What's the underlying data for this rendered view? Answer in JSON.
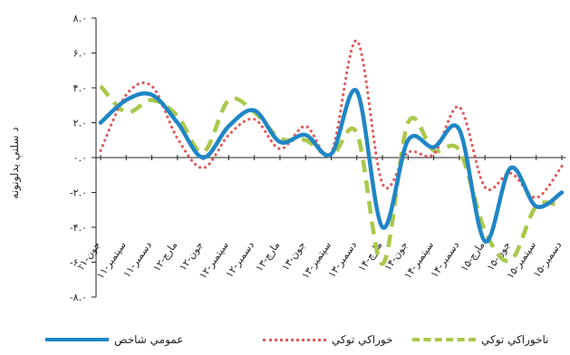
{
  "chart_data": {
    "type": "line",
    "ylabel": "د سلنې بدلونونه",
    "ylim": [
      -8,
      8
    ],
    "yticks": [
      8,
      6,
      4,
      2,
      0,
      -2,
      -4,
      -6,
      -8
    ],
    "ytick_labels": [
      "۸.۰",
      "۶.۰",
      "۴.۰",
      "۲.۰",
      "۰.۰",
      "-۲.۰",
      "-۴.۰",
      "-۶.۰",
      "-۸.۰"
    ],
    "categories": [
      "جون-۱۱",
      "سپتمبر-۱۱",
      "دسمبر-۱۱",
      "مارچ-۱۲",
      "جون-۱۲",
      "سپتمبر-۱۲",
      "دسمبر-۱۲",
      "مارچ-۱۳",
      "جون-۱۳",
      "سپتمبر-۱۳",
      "دسمبر-۱۳",
      "مارچ-۱۴",
      "جون-۱۴",
      "سپتمبر-۱۴",
      "دسمبر-۱۴",
      "مارچ-۱۵",
      "جون-۱۵",
      "سپتمبر-۱۵",
      "دسمبر-۱۵"
    ],
    "series": [
      {
        "name": "عمومي شاخص",
        "color": "#1f86c6",
        "style": "solid",
        "values": [
          2.0,
          3.3,
          3.6,
          2.0,
          0.0,
          1.8,
          2.7,
          0.9,
          1.3,
          0.2,
          3.8,
          -4.0,
          1.0,
          0.6,
          1.6,
          -4.8,
          -0.6,
          -2.8,
          -2.0
        ]
      },
      {
        "name": "خوراکي توکي",
        "color": "#e15a5a",
        "style": "dotted",
        "values": [
          0.4,
          3.6,
          4.1,
          1.1,
          -0.6,
          1.3,
          2.2,
          0.5,
          1.8,
          0.3,
          6.7,
          -1.5,
          0.3,
          0.2,
          2.9,
          -1.7,
          -0.9,
          -2.3,
          -0.5
        ]
      },
      {
        "name": "ناخوراکي توکي",
        "color": "#a9c84a",
        "style": "dashed",
        "values": [
          4.1,
          2.6,
          3.3,
          2.4,
          0.3,
          3.3,
          2.6,
          1.1,
          1.0,
          0.1,
          1.4,
          -6.1,
          2.0,
          0.4,
          0.4,
          -4.2,
          -5.9,
          -2.8,
          -2.8
        ]
      }
    ]
  }
}
